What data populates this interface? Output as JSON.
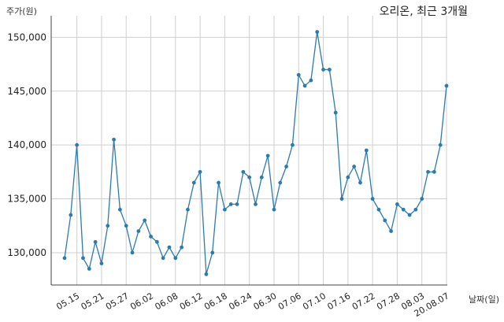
{
  "chart_data": {
    "type": "line",
    "title": "오리온, 최근 3개월",
    "ylabel": "주가(원)",
    "xlabel": "날짜(일)",
    "ylim": [
      127000,
      152000
    ],
    "y_ticks": [
      130000,
      135000,
      140000,
      145000,
      150000
    ],
    "y_tick_labels": [
      "130,000",
      "135,000",
      "140,000",
      "145,000",
      "150,000"
    ],
    "grid": true,
    "marker": "circle",
    "line_color": "#2b7bb0",
    "x_ticks": [
      {
        "index": 2,
        "label": "05.15"
      },
      {
        "index": 6,
        "label": "05.21"
      },
      {
        "index": 10,
        "label": "05.27"
      },
      {
        "index": 14,
        "label": "06.02"
      },
      {
        "index": 18,
        "label": "06.08"
      },
      {
        "index": 22,
        "label": "06.12"
      },
      {
        "index": 26,
        "label": "06.18"
      },
      {
        "index": 30,
        "label": "06.24"
      },
      {
        "index": 34,
        "label": "06.30"
      },
      {
        "index": 38,
        "label": "07.06"
      },
      {
        "index": 42,
        "label": "07.10"
      },
      {
        "index": 46,
        "label": "07.16"
      },
      {
        "index": 50,
        "label": "07.22"
      },
      {
        "index": 54,
        "label": "07.28"
      },
      {
        "index": 58,
        "label": "08.03"
      },
      {
        "index": 62,
        "label": "20.08.07"
      }
    ],
    "values": [
      129500,
      133500,
      140000,
      129500,
      128500,
      131000,
      129000,
      132500,
      140500,
      134000,
      132500,
      130000,
      132000,
      133000,
      131500,
      131000,
      129500,
      130500,
      129500,
      130500,
      134000,
      136500,
      137500,
      128000,
      130000,
      136500,
      134000,
      134500,
      134500,
      137500,
      137000,
      134500,
      137000,
      139000,
      134000,
      136500,
      138000,
      140000,
      146500,
      145500,
      146000,
      150500,
      147000,
      147000,
      143000,
      135000,
      137000,
      138000,
      136500,
      139500,
      135000,
      134000,
      133000,
      132000,
      134500,
      134000,
      133500,
      134000,
      135000,
      137500,
      137500,
      140000,
      145500
    ]
  }
}
